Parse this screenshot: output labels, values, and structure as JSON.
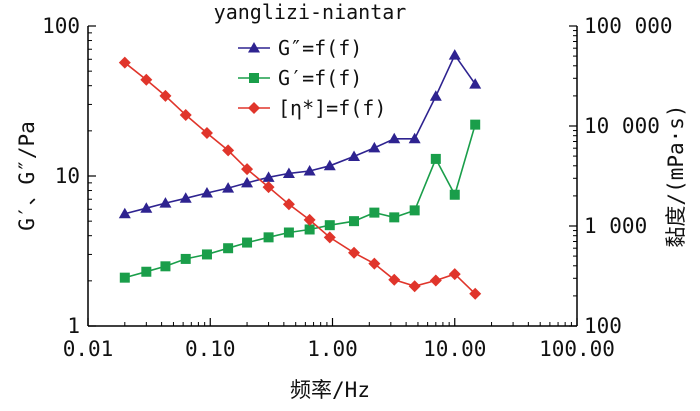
{
  "chart_data": {
    "type": "line",
    "title": "yanglizi-niantar",
    "xlabel": "频率/Hz",
    "ylabel_left": "G′、G″/Pa",
    "ylabel_right": "黏度/(mPa·s)",
    "x_scale": "log",
    "y_left_scale": "log",
    "y_right_scale": "log",
    "xlim": [
      0.01,
      100
    ],
    "ylim_left": [
      1,
      100
    ],
    "ylim_right": [
      100,
      100000
    ],
    "x_ticks": [
      0.01,
      0.1,
      1,
      10,
      100
    ],
    "x_tick_labels": [
      "0.01",
      "0.10",
      "1.00",
      "10.00",
      "100.00"
    ],
    "y_left_ticks": [
      1,
      10,
      100
    ],
    "y_left_tick_labels": [
      "1",
      "10",
      "100"
    ],
    "y_right_ticks": [
      100,
      1000,
      10000,
      100000
    ],
    "y_right_tick_labels": [
      "100",
      "1 000",
      "10 000",
      "100 000"
    ],
    "legend_position": "top-center",
    "grid": false,
    "series": [
      {
        "name": "G″=f(f)",
        "axis": "left",
        "color": "#2e2390",
        "marker": "triangle",
        "x": [
          0.02,
          0.03,
          0.043,
          0.063,
          0.094,
          0.14,
          0.2,
          0.3,
          0.44,
          0.65,
          0.95,
          1.5,
          2.2,
          3.2,
          4.7,
          7.0,
          10.0,
          14.7
        ],
        "y": [
          5.6,
          6.1,
          6.6,
          7.1,
          7.7,
          8.3,
          9.0,
          9.8,
          10.4,
          10.8,
          11.7,
          13.5,
          15.4,
          17.7,
          17.7,
          34,
          64,
          41
        ]
      },
      {
        "name": "G′=f(f)",
        "axis": "left",
        "color": "#1a9e4a",
        "marker": "square",
        "x": [
          0.02,
          0.03,
          0.043,
          0.063,
          0.094,
          0.14,
          0.2,
          0.3,
          0.44,
          0.65,
          0.95,
          1.5,
          2.2,
          3.2,
          4.7,
          7.0,
          10.0,
          14.7
        ],
        "y": [
          2.1,
          2.3,
          2.5,
          2.8,
          3.0,
          3.3,
          3.6,
          3.9,
          4.2,
          4.4,
          4.7,
          5.0,
          5.7,
          5.3,
          5.9,
          13,
          7.5,
          22
        ]
      },
      {
        "name": "[η*]=f(f)",
        "axis": "right",
        "color": "#e0352b",
        "marker": "diamond",
        "x": [
          0.02,
          0.03,
          0.043,
          0.063,
          0.094,
          0.14,
          0.2,
          0.3,
          0.44,
          0.65,
          0.95,
          1.5,
          2.2,
          3.2,
          4.7,
          7.0,
          10.0,
          14.7
        ],
        "y": [
          43000,
          29000,
          20000,
          12900,
          8500,
          5700,
          3700,
          2450,
          1650,
          1150,
          770,
          540,
          420,
          290,
          250,
          285,
          330,
          210
        ]
      }
    ]
  }
}
